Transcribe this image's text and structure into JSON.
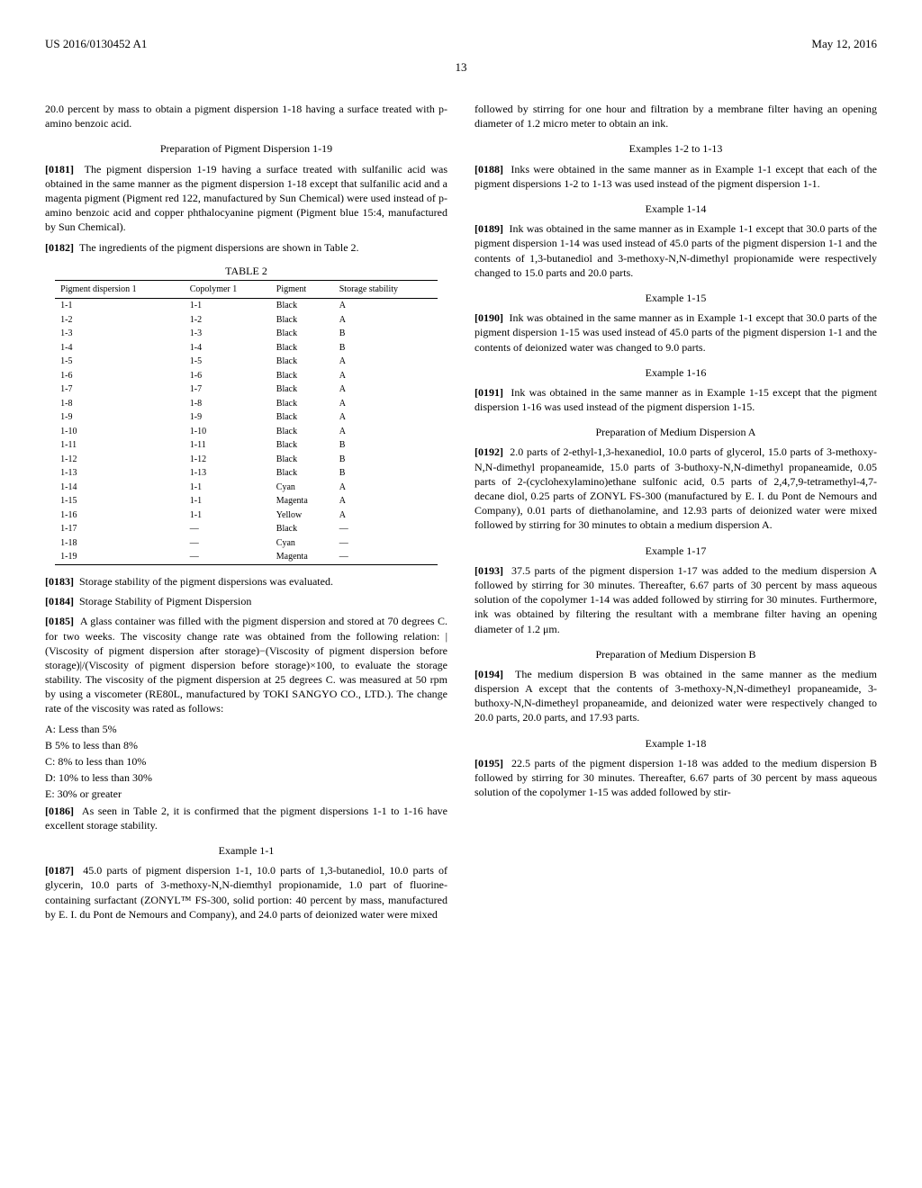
{
  "header": {
    "left": "US 2016/0130452 A1",
    "right": "May 12, 2016",
    "page_num": "13"
  },
  "left_col": {
    "para1": "20.0 percent by mass to obtain a pigment dispersion 1-18 having a surface treated with p-amino benzoic acid.",
    "heading1": "Preparation of Pigment Dispersion 1-19",
    "para2_num": "[0181]",
    "para2": "The pigment dispersion 1-19 having a surface treated with sulfanilic acid was obtained in the same manner as the pigment dispersion 1-18 except that sulfanilic acid and a magenta pigment (Pigment red 122, manufactured by Sun Chemical) were used instead of p-amino benzoic acid and copper phthalocyanine pigment (Pigment blue 15:4, manufactured by Sun Chemical).",
    "para3_num": "[0182]",
    "para3": "The ingredients of the pigment dispersions are shown in Table 2.",
    "table_label": "TABLE 2",
    "table": {
      "headers": [
        "Pigment dispersion 1",
        "Copolymer 1",
        "Pigment",
        "Storage stability"
      ],
      "rows": [
        [
          "1-1",
          "1-1",
          "Black",
          "A"
        ],
        [
          "1-2",
          "1-2",
          "Black",
          "A"
        ],
        [
          "1-3",
          "1-3",
          "Black",
          "B"
        ],
        [
          "1-4",
          "1-4",
          "Black",
          "B"
        ],
        [
          "1-5",
          "1-5",
          "Black",
          "A"
        ],
        [
          "1-6",
          "1-6",
          "Black",
          "A"
        ],
        [
          "1-7",
          "1-7",
          "Black",
          "A"
        ],
        [
          "1-8",
          "1-8",
          "Black",
          "A"
        ],
        [
          "1-9",
          "1-9",
          "Black",
          "A"
        ],
        [
          "1-10",
          "1-10",
          "Black",
          "A"
        ],
        [
          "1-11",
          "1-11",
          "Black",
          "B"
        ],
        [
          "1-12",
          "1-12",
          "Black",
          "B"
        ],
        [
          "1-13",
          "1-13",
          "Black",
          "B"
        ],
        [
          "1-14",
          "1-1",
          "Cyan",
          "A"
        ],
        [
          "1-15",
          "1-1",
          "Magenta",
          "A"
        ],
        [
          "1-16",
          "1-1",
          "Yellow",
          "A"
        ],
        [
          "1-17",
          "—",
          "Black",
          "—"
        ],
        [
          "1-18",
          "—",
          "Cyan",
          "—"
        ],
        [
          "1-19",
          "—",
          "Magenta",
          "—"
        ]
      ]
    },
    "para4_num": "[0183]",
    "para4": "Storage stability of the pigment dispersions was evaluated.",
    "para5_num": "[0184]",
    "para5": "Storage Stability of Pigment Dispersion",
    "para6_num": "[0185]",
    "para6": "A glass container was filled with the pigment dispersion and stored at 70 degrees C. for two weeks. The viscosity change rate was obtained from the following relation: |(Viscosity of pigment dispersion after storage)−(Viscosity of pigment dispersion before storage)|/(Viscosity of pigment dispersion before storage)×100, to evaluate the storage stability. The viscosity of the pigment dispersion at 25 degrees C. was measured at 50 rpm by using a viscometer (RE80L, manufactured by TOKI SANGYO CO., LTD.). The change rate of the viscosity was rated as follows:",
    "ratings": [
      "A: Less than 5%",
      "B 5% to less than 8%",
      "C: 8% to less than 10%",
      "D: 10% to less than 30%",
      "E: 30% or greater"
    ],
    "para7_num": "[0186]",
    "para7": "As seen in Table 2, it is confirmed that the pigment dispersions 1-1 to 1-16 have excellent storage stability.",
    "heading2": "Example 1-1",
    "para8_num": "[0187]",
    "para8": "45.0 parts of pigment dispersion 1-1, 10.0 parts of 1,3-butanediol, 10.0 parts of glycerin, 10.0 parts of 3-methoxy-N,N-diemthyl propionamide, 1.0 part of fluorine-containing surfactant (ZONYL™ FS-300, solid portion: 40 percent by mass, manufactured by E. I. du Pont de Nemours and Company), and 24.0 parts of deionized water were mixed"
  },
  "right_col": {
    "para1": "followed by stirring for one hour and filtration by a membrane filter having an opening diameter of 1.2 micro meter to obtain an ink.",
    "heading1": "Examples 1-2 to 1-13",
    "para2_num": "[0188]",
    "para2": "Inks were obtained in the same manner as in Example 1-1 except that each of the pigment dispersions 1-2 to 1-13 was used instead of the pigment dispersion 1-1.",
    "heading2": "Example 1-14",
    "para3_num": "[0189]",
    "para3": "Ink was obtained in the same manner as in Example 1-1 except that 30.0 parts of the pigment dispersion 1-14 was used instead of 45.0 parts of the pigment dispersion 1-1 and the contents of 1,3-butanediol and 3-methoxy-N,N-dimethyl propionamide were respectively changed to 15.0 parts and 20.0 parts.",
    "heading3": "Example 1-15",
    "para4_num": "[0190]",
    "para4": "Ink was obtained in the same manner as in Example 1-1 except that 30.0 parts of the pigment dispersion 1-15 was used instead of 45.0 parts of the pigment dispersion 1-1 and the contents of deionized water was changed to 9.0 parts.",
    "heading4": "Example 1-16",
    "para5_num": "[0191]",
    "para5": "Ink was obtained in the same manner as in Example 1-15 except that the pigment dispersion 1-16 was used instead of the pigment dispersion 1-15.",
    "heading5": "Preparation of Medium Dispersion A",
    "para6_num": "[0192]",
    "para6": "2.0 parts of 2-ethyl-1,3-hexanediol, 10.0 parts of glycerol, 15.0 parts of 3-methoxy-N,N-dimethyl propaneamide, 15.0 parts of 3-buthoxy-N,N-dimethyl propaneamide, 0.05 parts of 2-(cyclohexylamino)ethane sulfonic acid, 0.5 parts of 2,4,7,9-tetramethyl-4,7-decane diol, 0.25 parts of ZONYL FS-300 (manufactured by E. I. du Pont de Nemours and Company), 0.01 parts of diethanolamine, and 12.93 parts of deionized water were mixed followed by stirring for 30 minutes to obtain a medium dispersion A.",
    "heading6": "Example 1-17",
    "para7_num": "[0193]",
    "para7": "37.5 parts of the pigment dispersion 1-17 was added to the medium dispersion A followed by stirring for 30 minutes. Thereafter, 6.67 parts of 30 percent by mass aqueous solution of the copolymer 1-14 was added followed by stirring for 30 minutes. Furthermore, ink was obtained by filtering the resultant with a membrane filter having an opening diameter of 1.2 μm.",
    "heading7": "Preparation of Medium Dispersion B",
    "para8_num": "[0194]",
    "para8": "The medium dispersion B was obtained in the same manner as the medium dispersion A except that the contents of 3-methoxy-N,N-dimetheyl propaneamide, 3-buthoxy-N,N-dimetheyl propaneamide, and deionized water were respectively changed to 20.0 parts, 20.0 parts, and 17.93 parts.",
    "heading8": "Example 1-18",
    "para9_num": "[0195]",
    "para9": "22.5 parts of the pigment dispersion 1-18 was added to the medium dispersion B followed by stirring for 30 minutes. Thereafter, 6.67 parts of 30 percent by mass aqueous solution of the copolymer 1-15 was added followed by stir-"
  }
}
